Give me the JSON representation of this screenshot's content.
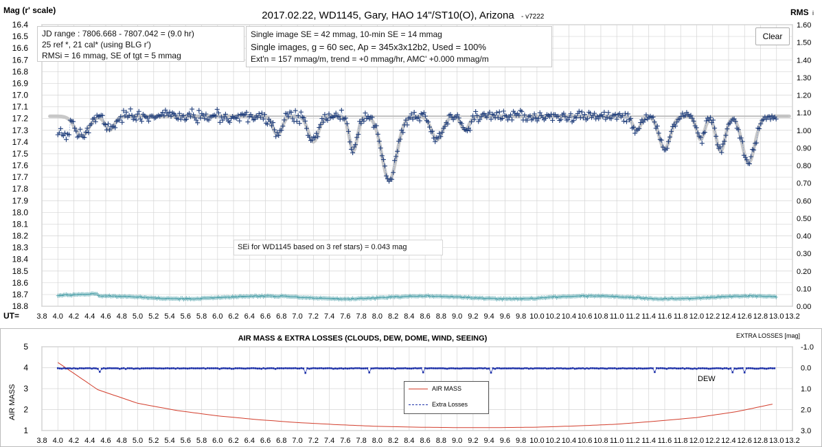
{
  "title": "2017.02.22,  WD1145, Gary, HAO  14\"/ST10(O),  Arizona",
  "version": " - v7222",
  "top_chart": {
    "ylabel_left": "Mag (r' scale)",
    "ylabel_right": "RMS",
    "ylabel_right_sub": "i",
    "x_prefix": "UT=",
    "info_box_1": [
      "JD range  : 7806.668 - 7807.042 = (9.0 hr)",
      "25 ref *, 21 cal* (using BLG r')",
      "RMSi = 16 mmag, SE of tgt = 5 mmag"
    ],
    "info_box_2": [
      "Single image SE = 42 mmag, 10-min SE = 14 mmag",
      "Single images, g = 60 sec, Ap = 345x3x12b2,  Used = 100%",
      "Ext'n = 157  mmag/m, trend = +0 mmag/hr, AMC' +0.000  mmag/m"
    ],
    "se_note": "SEi for WD1145 based on 3 ref stars) = 0.043 mag",
    "clear_label": "Clear"
  },
  "bottom_chart": {
    "title": "AIR MASS & EXTRA LOSSES (CLOUDS, DEW, DOME, WIND, SEEING)",
    "ylabel_left": "AIR MASS",
    "ylabel_right": "EXTRA LOSSES [mag]",
    "annotation": "DEW",
    "legend_airmass": "AIR MASS",
    "legend_losses": "Extra Losses"
  },
  "colors": {
    "data": "#1f3d7a",
    "model": "#c8c8c8",
    "rms": "#4a9fa8",
    "airmass": "#d23c2a",
    "losses": "#1a2ea8",
    "grid": "#d4d4d4"
  },
  "chart_data": [
    {
      "type": "scatter",
      "title": "2017.02.22,  WD1145, Gary, HAO  14\"/ST10(O),  Arizona",
      "xlabel": "UT=",
      "ylabel": "Mag (r' scale)",
      "xlim": [
        3.8,
        13.2
      ],
      "ylim": [
        18.8,
        16.4
      ],
      "y2lim": [
        0.0,
        1.6
      ],
      "grid": true,
      "reference_mag": 17.18,
      "dips": [
        {
          "center": 4.3,
          "depth": 0.17,
          "width": 0.12
        },
        {
          "center": 4.65,
          "depth": 0.12,
          "width": 0.08
        },
        {
          "center": 6.75,
          "depth": 0.16,
          "width": 0.08
        },
        {
          "center": 7.2,
          "depth": 0.22,
          "width": 0.09
        },
        {
          "center": 7.7,
          "depth": 0.3,
          "width": 0.07
        },
        {
          "center": 8.15,
          "depth": 0.55,
          "width": 0.13
        },
        {
          "center": 8.75,
          "depth": 0.2,
          "width": 0.1
        },
        {
          "center": 9.1,
          "depth": 0.12,
          "width": 0.07
        },
        {
          "center": 11.25,
          "depth": 0.12,
          "width": 0.07
        },
        {
          "center": 11.6,
          "depth": 0.28,
          "width": 0.1
        },
        {
          "center": 12.05,
          "depth": 0.2,
          "width": 0.07
        },
        {
          "center": 12.3,
          "depth": 0.3,
          "width": 0.08
        },
        {
          "center": 12.65,
          "depth": 0.4,
          "width": 0.11
        }
      ],
      "rms_mean": 0.05,
      "series": [
        {
          "values": "magnitude points (crosses)"
        },
        {
          "values": "model fit (thick grey)"
        },
        {
          "values": "RMSi (teal)"
        }
      ]
    },
    {
      "type": "line",
      "title": "AIR MASS & EXTRA LOSSES (CLOUDS, DEW, DOME, WIND, SEEING)",
      "xlim": [
        3.8,
        13.2
      ],
      "ylim": [
        1,
        5
      ],
      "y2lim": [
        3.0,
        -1.0
      ],
      "ylabel": "AIR MASS",
      "y2label": "EXTRA LOSSES [mag]",
      "airmass": {
        "x": [
          4.0,
          4.5,
          5.0,
          5.5,
          6.0,
          6.5,
          7.0,
          7.5,
          8.0,
          8.5,
          9.0,
          9.5,
          10.0,
          10.5,
          11.0,
          11.5,
          12.0,
          12.5,
          13.0
        ],
        "y": [
          4.25,
          2.95,
          2.3,
          1.95,
          1.7,
          1.52,
          1.38,
          1.28,
          1.2,
          1.16,
          1.14,
          1.14,
          1.16,
          1.22,
          1.3,
          1.45,
          1.62,
          1.9,
          2.3
        ]
      },
      "extra_losses_mean": 0.02,
      "series": [
        {
          "name": "AIR MASS"
        },
        {
          "name": "Extra Losses"
        }
      ]
    }
  ]
}
